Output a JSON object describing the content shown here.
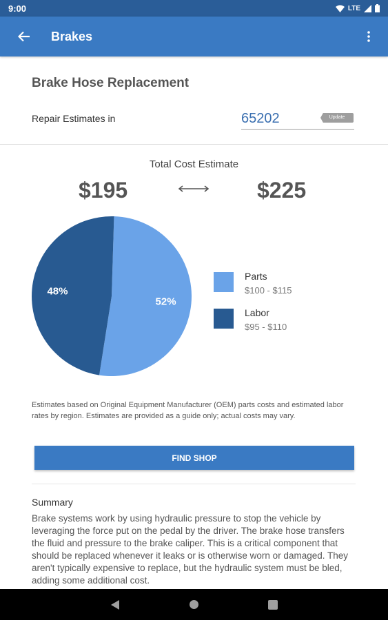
{
  "status_bar": {
    "time": "9:00",
    "network": "LTE"
  },
  "app_bar": {
    "title": "Brakes"
  },
  "repair": {
    "title": "Brake Hose Replacement",
    "estimates_label": "Repair Estimates in",
    "zip_value": "65202",
    "update_label": "Update"
  },
  "cost": {
    "label": "Total Cost Estimate",
    "low": "$195",
    "high": "$225"
  },
  "chart_data": {
    "type": "pie",
    "slices": [
      {
        "name": "Parts",
        "value": 52,
        "label": "52%",
        "range": "$100 - $115",
        "color": "#6aa3e8"
      },
      {
        "name": "Labor",
        "value": 48,
        "label": "48%",
        "range": "$95 - $110",
        "color": "#285a91"
      }
    ]
  },
  "disclaimer": "Estimates based on Original Equipment Manufacturer (OEM) parts costs and estimated labor rates by region. Estimates are provided as a guide only; actual costs may vary.",
  "find_shop_label": "FIND SHOP",
  "summary": {
    "title": "Summary",
    "text": "Brake systems work by using hydraulic pressure to stop the vehicle by leveraging the force put on the pedal by the driver. The brake hose transfers the fluid and pressure to the brake caliper. This is a critical component that should be replaced whenever it leaks or is otherwise worn or damaged. They aren't typically expensive to replace, but the hydraulic system must be bled, adding some additional cost."
  },
  "colors": {
    "status_bar": "#2a5d98",
    "app_bar": "#3a7ac3",
    "accent": "#3a7ac3"
  },
  "icons": [
    "back-arrow-icon",
    "more-vert-icon",
    "wifi-icon",
    "signal-icon",
    "battery-icon",
    "nav-back-icon",
    "nav-home-icon",
    "nav-recents-icon"
  ]
}
